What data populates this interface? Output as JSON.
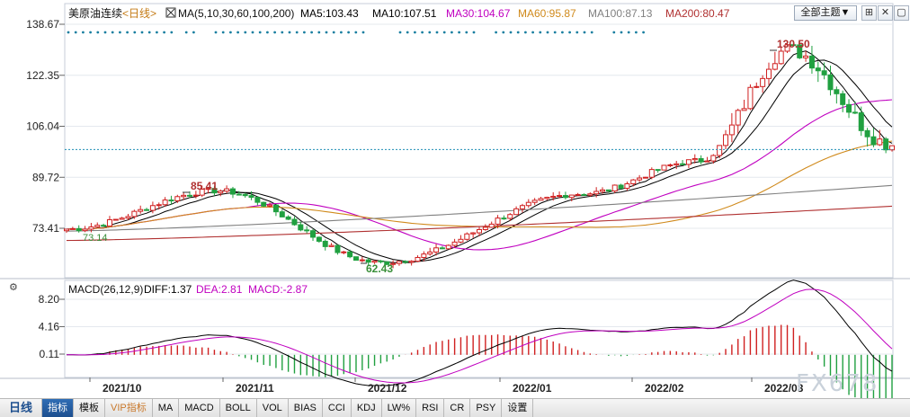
{
  "window": {
    "instrument": "美原油连续",
    "period": "<日线>",
    "indicator_menu_label": "全部主题▼"
  },
  "ma_legend": {
    "label": "MA(5,10,30,60,100,200)",
    "items": [
      {
        "text": "MA5:103.43",
        "color": "#000000"
      },
      {
        "text": "MA10:107.51",
        "color": "#000000"
      },
      {
        "text": "MA30:104.67",
        "color": "#c000c0"
      },
      {
        "text": "MA60:95.87",
        "color": "#d08a1c"
      },
      {
        "text": "MA100:87.13",
        "color": "#808080"
      },
      {
        "text": "MA200:80.47",
        "color": "#b03030"
      }
    ]
  },
  "macd_legend": {
    "label": "MACD(26,12,9)",
    "items": [
      {
        "text": "DIFF:1.37",
        "color": "#000000"
      },
      {
        "text": "DEA:2.81",
        "color": "#c000c0"
      },
      {
        "text": "MACD:-2.87",
        "color": "#c000c0"
      }
    ]
  },
  "price_axis": {
    "ticks": [
      138.67,
      122.35,
      106.04,
      89.72,
      73.41
    ],
    "min": 60.0,
    "max": 138.67,
    "current_price": 98.6
  },
  "macd_axis": {
    "ticks": [
      8.2,
      4.16,
      0.11
    ],
    "min": -4.8,
    "max": 8.2
  },
  "annotations": {
    "high_a": "85.41",
    "low": "62.43",
    "high_b": "130.50",
    "start": "73.14"
  },
  "time_axis": {
    "labels": [
      "2021/10",
      "2021/11",
      "2021/12",
      "2022/01",
      "2022/02",
      "2022/03"
    ]
  },
  "colors": {
    "up": "#d02020",
    "down": "#20a040",
    "grid": "#e4e8ee",
    "axis_text": "#222222",
    "dotted_line": "#1f8fb5",
    "marker_dots": "#1a7fa0"
  },
  "toolbar": {
    "tabs": [
      "日线",
      "指标",
      "模板",
      "VIP指标",
      "MA",
      "MACD",
      "BOLL",
      "VOL",
      "BIAS",
      "CCI",
      "KDJ",
      "LW%",
      "RSI",
      "CR",
      "PSY",
      "设置"
    ]
  },
  "watermark": "FX678",
  "chart_data": {
    "type": "candlestick",
    "series_label": "美原油连续",
    "anchor_points": [
      {
        "date": "2021-09-20",
        "close": 73.14
      },
      {
        "date": "2021-10-25",
        "close": 85.41
      },
      {
        "date": "2021-12-02",
        "close": 62.43
      },
      {
        "date": "2022-01-18",
        "close": 84.5
      },
      {
        "date": "2022-02-14",
        "close": 95.0
      },
      {
        "date": "2022-03-07",
        "close": 130.5
      },
      {
        "date": "2022-03-31",
        "close": 100.3
      }
    ],
    "moving_averages": {
      "MA5": 103.43,
      "MA10": 107.51,
      "MA30": 104.67,
      "MA60": 95.87,
      "MA100": 87.13,
      "MA200": 80.47
    },
    "macd": {
      "DIFF": 1.37,
      "DEA": 2.81,
      "MACD": -2.87
    },
    "ylim": [
      60,
      138.67
    ],
    "macd_ylim": [
      -4.8,
      8.2
    ]
  }
}
